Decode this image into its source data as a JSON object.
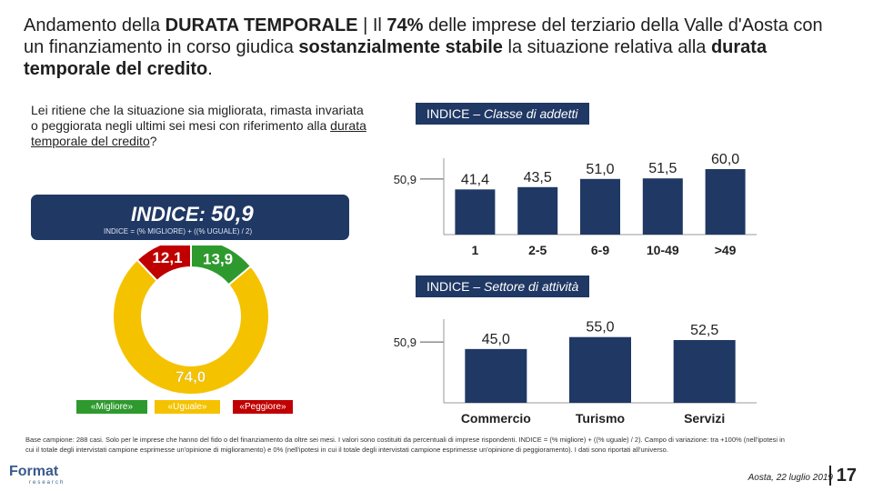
{
  "title": {
    "p1": "Andamento della ",
    "p2": "DURATA TEMPORALE",
    "p3": " | Il ",
    "p4": "74%",
    "p5": " delle imprese del terziario della Valle d'Aosta con un finanziamento in corso giudica ",
    "p6": "sostanzialmente stabile",
    "p7": " la situazione relativa alla ",
    "p8": "durata temporale del credito",
    "p9": "."
  },
  "question": {
    "p1": "Lei ritiene che la situazione sia migliorata, rimasta invariata o peggiorata negli ultimi sei mesi con riferimento alla ",
    "p2": "durata temporale del credito",
    "p3": "?"
  },
  "index_box": {
    "label": "INDICE: ",
    "value": "50,9",
    "formula": "INDICE = (% MIGLIORE) + ((% UGUALE) / 2)"
  },
  "panel_addetti": {
    "prefix": "INDICE – ",
    "italic": "Classe di addetti"
  },
  "panel_settore": {
    "prefix": "INDICE – ",
    "italic": "Settore di attività"
  },
  "footer": {
    "note": "Base campione: 288 casi. Solo per le imprese che hanno del fido o del finanziamento da oltre sei mesi. I valori sono costituiti da percentuali di imprese rispondenti. INDICE = (% migliore) + ((% uguale) / 2). Campo di variazione: tra +100% (nell'ipotesi in cui il totale degli intervistati campione esprimesse un'opinione di miglioramento) e 0% (nell'ipotesi in cui il totale degli intervistati campione esprimesse un'opinione di peggioramento). I dati sono riportati all'universo.",
    "place_date": "Aosta, 22 luglio 2019",
    "page": "17",
    "logo": "Format",
    "logo_sub": "research"
  },
  "chart_data": [
    {
      "type": "pie",
      "categories": [
        "«Migliore»",
        "«Uguale»",
        "«Peggiore»"
      ],
      "values": [
        13.9,
        74.0,
        12.1
      ],
      "value_labels": [
        "13,9",
        "74,0",
        "12,1"
      ],
      "colors": [
        "#2e9a2e",
        "#f5c200",
        "#c00000"
      ]
    },
    {
      "type": "bar",
      "categories": [
        "1",
        "2-5",
        "6-9",
        "10-49",
        ">49"
      ],
      "values": [
        41.4,
        43.5,
        51.0,
        51.5,
        60.0
      ],
      "value_labels": [
        "41,4",
        "43,5",
        "51,0",
        "51,5",
        "60,0"
      ],
      "reference_line": 50.9,
      "reference_label": "50,9",
      "color": "#203864"
    },
    {
      "type": "bar",
      "categories": [
        "Commercio",
        "Turismo",
        "Servizi"
      ],
      "values": [
        45.0,
        55.0,
        52.5
      ],
      "value_labels": [
        "45,0",
        "55,0",
        "52,5"
      ],
      "reference_line": 50.9,
      "reference_label": "50,9",
      "color": "#203864"
    }
  ]
}
